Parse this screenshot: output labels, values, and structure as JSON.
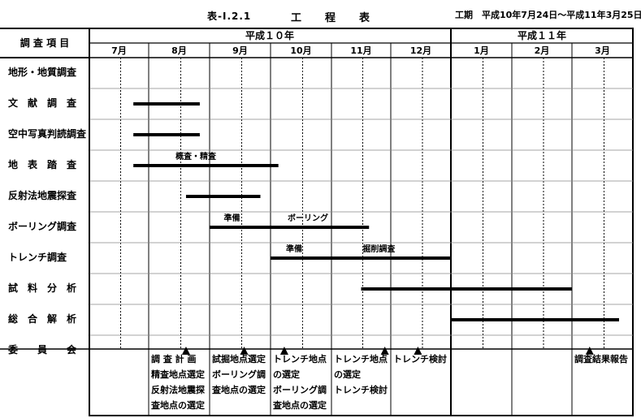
{
  "header": {
    "table_no": "表-Ⅰ.2.1",
    "title": "工　　程　　表",
    "period": "工期　平成10年7月24日～平成11年3月25日"
  },
  "columns": {
    "item_header": "調 査 項 目",
    "years": [
      "平成１０年",
      "平成１１年"
    ],
    "months": [
      "7月",
      "8月",
      "9月",
      "10月",
      "11月",
      "12月",
      "1月",
      "2月",
      "3月"
    ]
  },
  "rows": [
    {
      "label": "地形・地質調査",
      "bars": []
    },
    {
      "label": "文　献　調　査",
      "bars": [
        {
          "start": "1998-07-24",
          "end": "1998-08-27"
        }
      ]
    },
    {
      "label": "空中写真判読調査",
      "bars": [
        {
          "start": "1998-07-24",
          "end": "1998-08-27"
        }
      ]
    },
    {
      "label": "地　表　踏　査",
      "bars": [
        {
          "start": "1998-07-24",
          "end": "1998-10-05"
        }
      ],
      "notes": [
        {
          "text": "概査・精査",
          "date": "1998-08-25"
        }
      ]
    },
    {
      "label": "反射法地震探査",
      "bars": [
        {
          "start": "1998-08-20",
          "end": "1998-09-26"
        }
      ]
    },
    {
      "label": "ボーリング調査",
      "bars": [
        {
          "start": "1998-09-01",
          "end": "1998-11-20"
        }
      ],
      "notes": [
        {
          "text": "準備",
          "date": "1998-09-12"
        },
        {
          "text": "ボーリング",
          "date": "1998-10-20"
        }
      ]
    },
    {
      "label": "トレンチ調査",
      "bars": [
        {
          "start": "1998-10-01",
          "end": "1998-12-31"
        }
      ],
      "notes": [
        {
          "text": "準備",
          "date": "1998-10-13"
        },
        {
          "text": "掘削調査",
          "date": "1998-11-25"
        }
      ]
    },
    {
      "label": "試　料　分　析",
      "bars": [
        {
          "start": "1998-11-16",
          "end": "1999-02-28"
        }
      ]
    },
    {
      "label": "総　合　解　析",
      "bars": [
        {
          "start": "1999-01-01",
          "end": "1999-03-31"
        }
      ]
    },
    {
      "label": "委　　員　　会",
      "bars": [],
      "markers": [
        "1998-08-20",
        "1998-09-18",
        "1998-10-08",
        "1998-11-28",
        "1998-12-15",
        "1999-03-10"
      ]
    }
  ],
  "committee_notes": [
    {
      "month": "8月",
      "lines": [
        "調 査 計 画",
        "精査地点選定",
        "反射法地震探",
        "査地点の選定"
      ]
    },
    {
      "month": "9月",
      "lines": [
        "試掘地点選定",
        "ボーリング調",
        "査地点の選定"
      ]
    },
    {
      "month": "10月",
      "lines": [
        "トレンチ地点",
        "の選定",
        "ボーリング調",
        "査地点の選定"
      ]
    },
    {
      "month": "11月",
      "lines": [
        "トレンチ地点",
        "の選定",
        "トレンチ検討"
      ]
    },
    {
      "month": "12月",
      "lines": [
        "トレンチ検討"
      ]
    },
    {
      "month": "3月",
      "lines": [
        "調査結果報告"
      ]
    }
  ]
}
